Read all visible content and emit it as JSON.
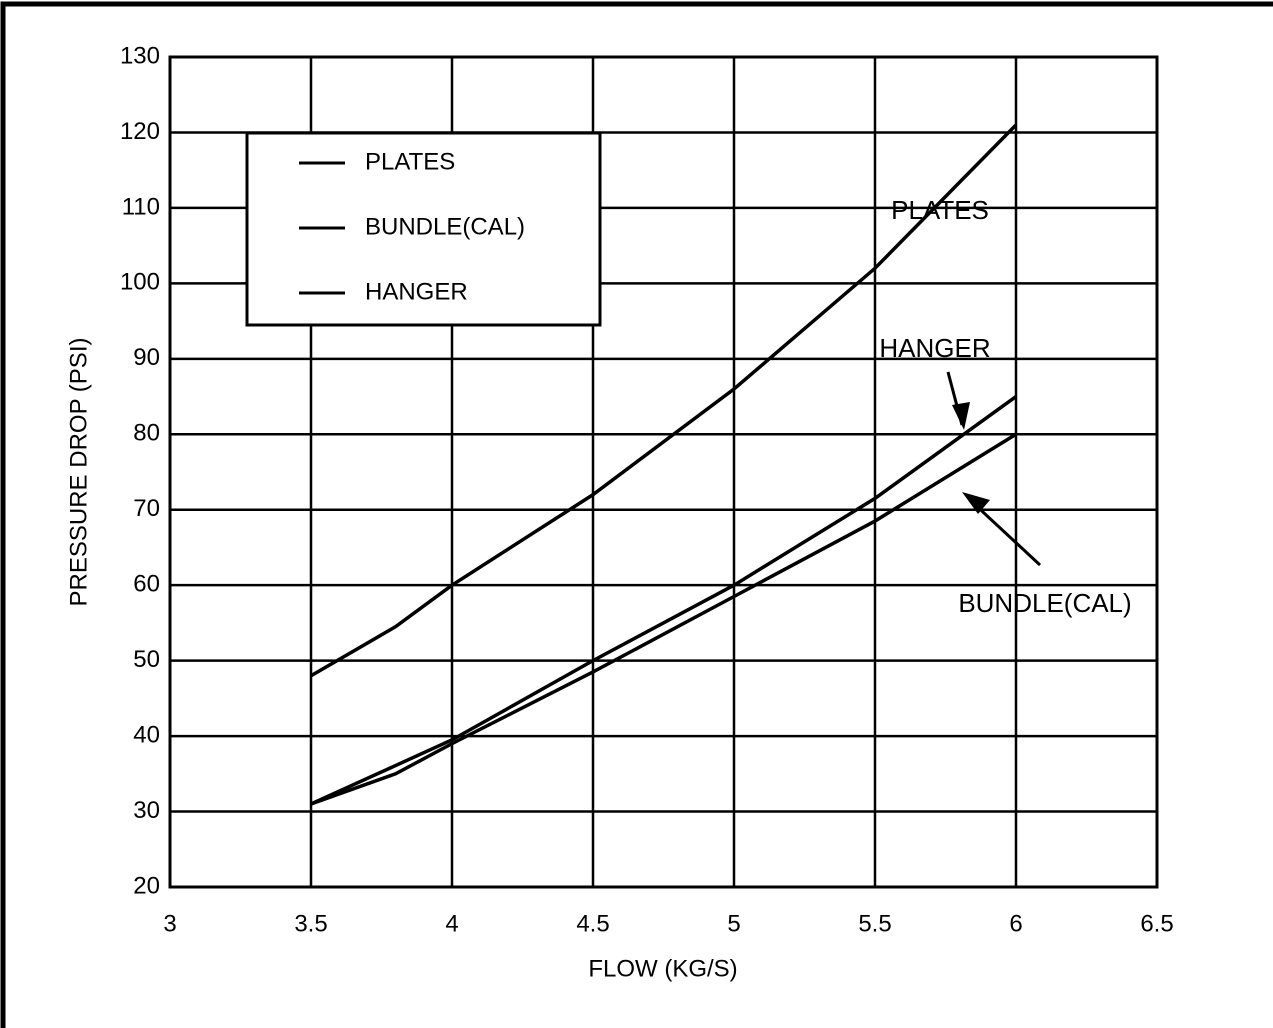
{
  "chart_data": {
    "type": "line",
    "x_label": "FLOW (KG/S)",
    "y_label": "PRESSURE DROP (PSI)",
    "xlim": [
      3,
      6.5
    ],
    "xticks": [
      3,
      3.5,
      4,
      4.5,
      5,
      5.5,
      6,
      6.5
    ],
    "ylim": [
      20,
      130
    ],
    "yticks": [
      20,
      30,
      40,
      50,
      60,
      70,
      80,
      90,
      100,
      110,
      120,
      130
    ],
    "grid": true,
    "legend": "upper left",
    "series": [
      {
        "name": "PLATES",
        "color": "#000000",
        "x": [
          3.5,
          3.8,
          4,
          4.5,
          5,
          5.5,
          6
        ],
        "values": [
          48,
          54.5,
          60,
          72,
          86,
          102,
          121
        ]
      },
      {
        "name": "BUNDLE(CAL)",
        "color": "#000000",
        "x": [
          3.5,
          3.8,
          4,
          4.5,
          5,
          5.5,
          6
        ],
        "values": [
          31,
          35,
          39,
          48.5,
          58.5,
          68.5,
          80
        ]
      },
      {
        "name": "HANGER",
        "color": "#000000",
        "x": [
          3.5,
          4,
          4.5,
          5,
          5.5,
          6
        ],
        "values": [
          31,
          39.5,
          50,
          60,
          71.5,
          85
        ]
      }
    ],
    "annotations": [
      "PLATES",
      "HANGER",
      "BUNDLE(CAL)"
    ]
  }
}
